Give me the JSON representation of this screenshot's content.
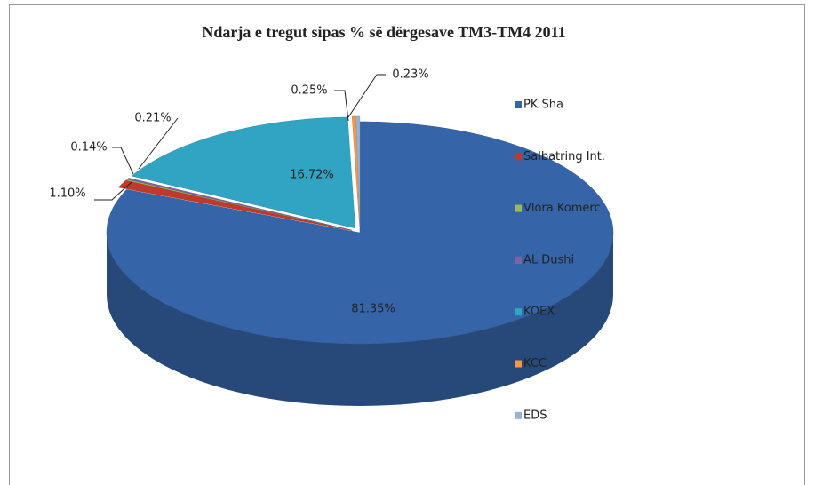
{
  "chart_data": {
    "type": "pie3d",
    "title": "Ndarja e tregut sipas % së dërgesave TM3-TM4 2011",
    "categories": [
      "PK Sha",
      "Salbatring Int.",
      "Vlora Komerc",
      "AL Dushi",
      "KOEX",
      "KCC",
      "EDS"
    ],
    "values": [
      81.35,
      1.1,
      0.14,
      0.21,
      16.72,
      0.25,
      0.23
    ],
    "value_labels": [
      "81.35%",
      "1.10%",
      "0.14%",
      "0.21%",
      "16.72%",
      "0.25%",
      "0.23%"
    ],
    "colors": [
      "#3565a8",
      "#c0392b",
      "#9bbb59",
      "#8064a2",
      "#31a4c4",
      "#f79646",
      "#95b3d7"
    ],
    "legend": "right"
  }
}
